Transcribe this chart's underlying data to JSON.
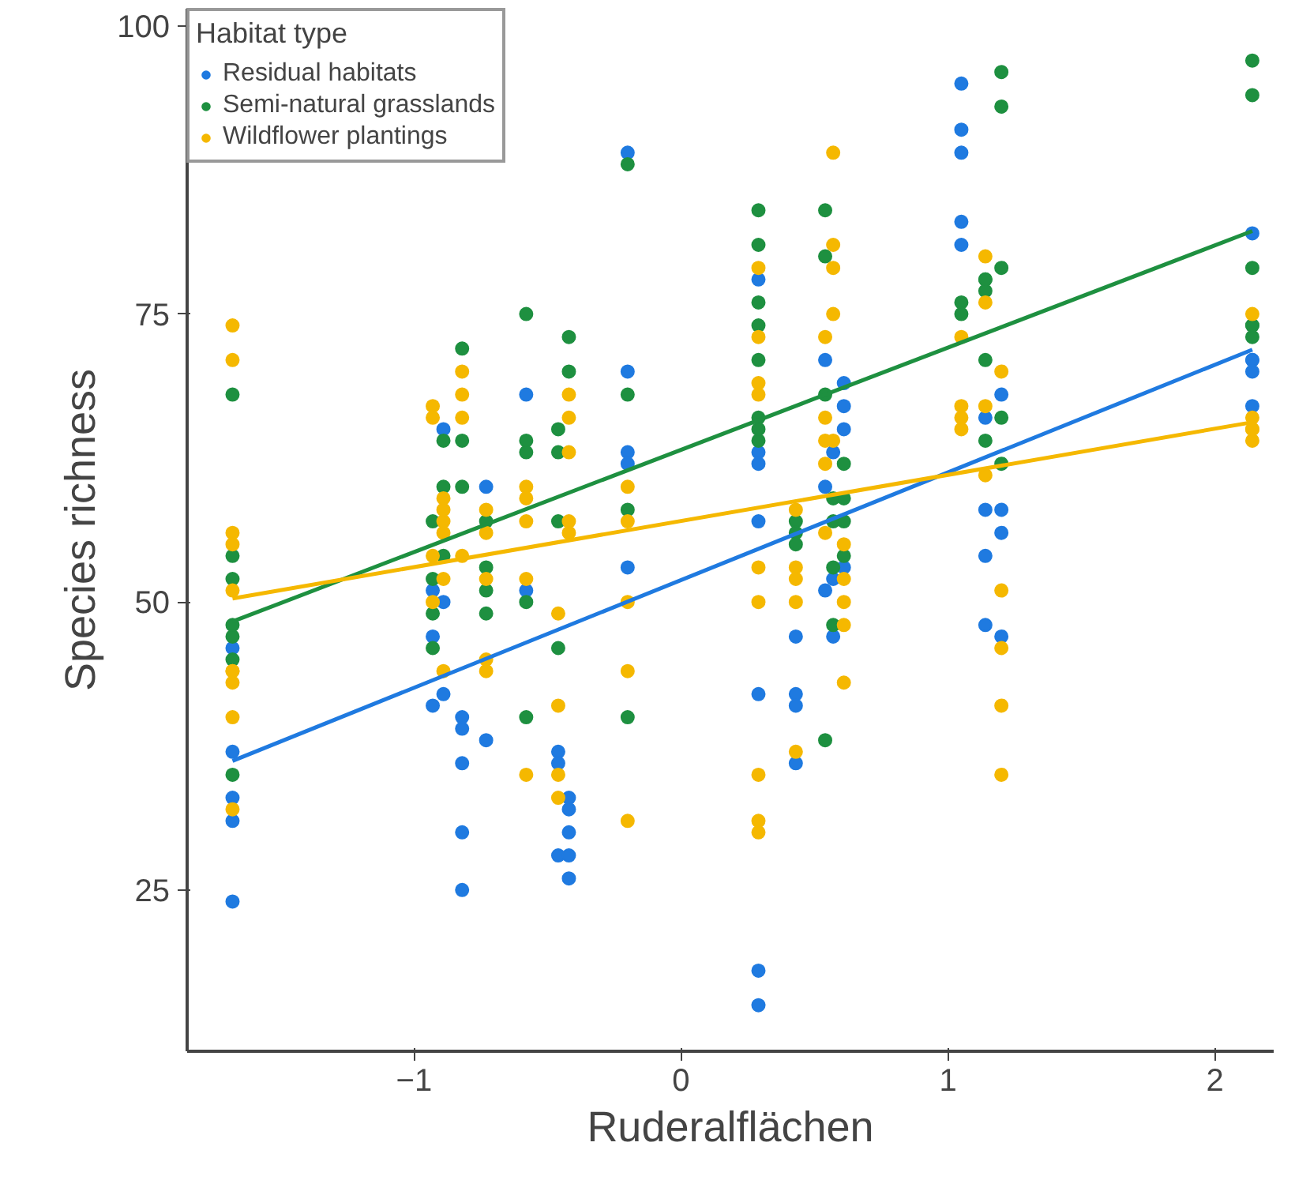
{
  "chart_data": {
    "type": "scatter",
    "xlabel": "Ruderalflächen",
    "ylabel": "Species richness",
    "legend_title": "Habitat type",
    "xlim": [
      -1.85,
      2.22
    ],
    "ylim": [
      11,
      101.5
    ],
    "xticks": [
      -1,
      0,
      1,
      2
    ],
    "yticks": [
      25,
      50,
      75,
      100
    ],
    "grid": false,
    "legend": "top left",
    "marker": "circle",
    "series": [
      {
        "name": "Residual habitats",
        "color": "#1f7ae0",
        "x": [
          -1.68,
          -1.68,
          -1.68,
          -1.68,
          -1.68,
          -0.93,
          -0.93,
          -0.93,
          -0.89,
          -0.89,
          -0.89,
          -0.82,
          -0.82,
          -0.82,
          -0.82,
          -0.82,
          -0.73,
          -0.73,
          -0.58,
          -0.58,
          -0.46,
          -0.46,
          -0.46,
          -0.42,
          -0.42,
          -0.42,
          -0.42,
          -0.42,
          -0.2,
          -0.2,
          -0.2,
          -0.2,
          -0.2,
          0.29,
          0.29,
          0.29,
          0.29,
          0.29,
          0.29,
          0.29,
          0.43,
          0.43,
          0.43,
          0.43,
          0.54,
          0.54,
          0.54,
          0.57,
          0.57,
          0.57,
          0.61,
          0.61,
          0.61,
          0.61,
          1.05,
          1.05,
          1.05,
          1.05,
          1.05,
          1.14,
          1.14,
          1.14,
          1.14,
          1.2,
          1.2,
          1.2,
          1.2,
          2.14,
          2.14,
          2.14,
          2.14,
          2.14
        ],
        "values": [
          46,
          37,
          33,
          31,
          24,
          51,
          47,
          41,
          65,
          50,
          42,
          40,
          39,
          36,
          30,
          25,
          60,
          38,
          68,
          51,
          37,
          36,
          28,
          33,
          32,
          30,
          28,
          26,
          89,
          70,
          63,
          62,
          53,
          78,
          63,
          62,
          57,
          42,
          18,
          15,
          47,
          42,
          41,
          36,
          71,
          60,
          51,
          63,
          52,
          47,
          69,
          67,
          65,
          53,
          95,
          91,
          89,
          83,
          81,
          66,
          58,
          54,
          48,
          68,
          58,
          56,
          47,
          82,
          71,
          71,
          70,
          67
        ]
      },
      {
        "name": "Semi-natural grasslands",
        "color": "#1e9040",
        "x": [
          -1.68,
          -1.68,
          -1.68,
          -1.68,
          -1.68,
          -1.68,
          -1.68,
          -0.93,
          -0.93,
          -0.93,
          -0.93,
          -0.89,
          -0.89,
          -0.89,
          -0.82,
          -0.82,
          -0.82,
          -0.73,
          -0.73,
          -0.73,
          -0.73,
          -0.58,
          -0.58,
          -0.58,
          -0.58,
          -0.58,
          -0.46,
          -0.46,
          -0.46,
          -0.46,
          -0.42,
          -0.42,
          -0.2,
          -0.2,
          -0.2,
          -0.2,
          0.29,
          0.29,
          0.29,
          0.29,
          0.29,
          0.29,
          0.29,
          0.29,
          0.43,
          0.43,
          0.43,
          0.54,
          0.54,
          0.54,
          0.54,
          0.57,
          0.57,
          0.57,
          0.57,
          0.61,
          0.61,
          0.61,
          0.61,
          1.05,
          1.05,
          1.14,
          1.14,
          1.14,
          1.14,
          1.14,
          1.2,
          1.2,
          1.2,
          1.2,
          1.2,
          2.14,
          2.14,
          2.14,
          2.14,
          2.14,
          2.14
        ],
        "values": [
          68,
          54,
          52,
          48,
          47,
          45,
          35,
          57,
          52,
          49,
          46,
          64,
          60,
          54,
          72,
          64,
          60,
          57,
          53,
          51,
          49,
          75,
          64,
          63,
          50,
          40,
          65,
          63,
          57,
          46,
          73,
          70,
          88,
          68,
          58,
          40,
          84,
          81,
          76,
          74,
          71,
          66,
          65,
          64,
          57,
          56,
          55,
          84,
          80,
          68,
          38,
          59,
          57,
          53,
          48,
          62,
          59,
          57,
          54,
          76,
          75,
          78,
          78,
          77,
          71,
          64,
          96,
          93,
          79,
          66,
          62,
          97,
          94,
          79,
          74,
          74,
          73
        ]
      },
      {
        "name": "Wildflower plantings",
        "color": "#f5b800",
        "x": [
          -1.68,
          -1.68,
          -1.68,
          -1.68,
          -1.68,
          -1.68,
          -1.68,
          -1.68,
          -1.68,
          -1.68,
          -0.93,
          -0.93,
          -0.93,
          -0.93,
          -0.89,
          -0.89,
          -0.89,
          -0.89,
          -0.89,
          -0.89,
          -0.82,
          -0.82,
          -0.82,
          -0.82,
          -0.73,
          -0.73,
          -0.73,
          -0.73,
          -0.73,
          -0.58,
          -0.58,
          -0.58,
          -0.58,
          -0.58,
          -0.46,
          -0.46,
          -0.46,
          -0.46,
          -0.42,
          -0.42,
          -0.42,
          -0.42,
          -0.42,
          -0.2,
          -0.2,
          -0.2,
          -0.2,
          -0.2,
          0.29,
          0.29,
          0.29,
          0.29,
          0.29,
          0.29,
          0.29,
          0.29,
          0.29,
          0.43,
          0.43,
          0.43,
          0.43,
          0.43,
          0.54,
          0.54,
          0.54,
          0.54,
          0.54,
          0.57,
          0.57,
          0.57,
          0.57,
          0.57,
          0.61,
          0.61,
          0.61,
          0.61,
          0.61,
          1.05,
          1.05,
          1.05,
          1.05,
          1.14,
          1.14,
          1.14,
          1.14,
          1.2,
          1.2,
          1.2,
          1.2,
          1.2,
          2.14,
          2.14,
          2.14,
          2.14,
          2.14
        ],
        "values": [
          74,
          71,
          56,
          55,
          51,
          44,
          44,
          43,
          40,
          32,
          67,
          66,
          54,
          50,
          59,
          58,
          57,
          56,
          52,
          44,
          70,
          68,
          66,
          54,
          58,
          56,
          52,
          45,
          44,
          60,
          59,
          57,
          52,
          35,
          49,
          41,
          35,
          33,
          68,
          66,
          63,
          57,
          56,
          60,
          57,
          50,
          44,
          31,
          79,
          73,
          69,
          68,
          53,
          50,
          35,
          31,
          30,
          58,
          53,
          52,
          50,
          37,
          73,
          66,
          64,
          62,
          56,
          89,
          81,
          79,
          75,
          64,
          55,
          52,
          50,
          48,
          43,
          73,
          67,
          66,
          65,
          80,
          76,
          67,
          61,
          70,
          51,
          46,
          41,
          35,
          75,
          66,
          65,
          65,
          64
        ]
      },
      {
        "type": "line",
        "color": "#1f7ae0",
        "marker": "none",
        "x": [
          -1.68,
          2.14
        ],
        "values": [
          36.2,
          71.9
        ]
      },
      {
        "type": "line",
        "color": "#1e9040",
        "marker": "none",
        "x": [
          -1.68,
          2.14
        ],
        "values": [
          48.3,
          82.2
        ]
      },
      {
        "type": "line",
        "color": "#f5b800",
        "marker": "none",
        "x": [
          -1.68,
          2.14
        ],
        "values": [
          50.3,
          65.6
        ]
      }
    ]
  }
}
